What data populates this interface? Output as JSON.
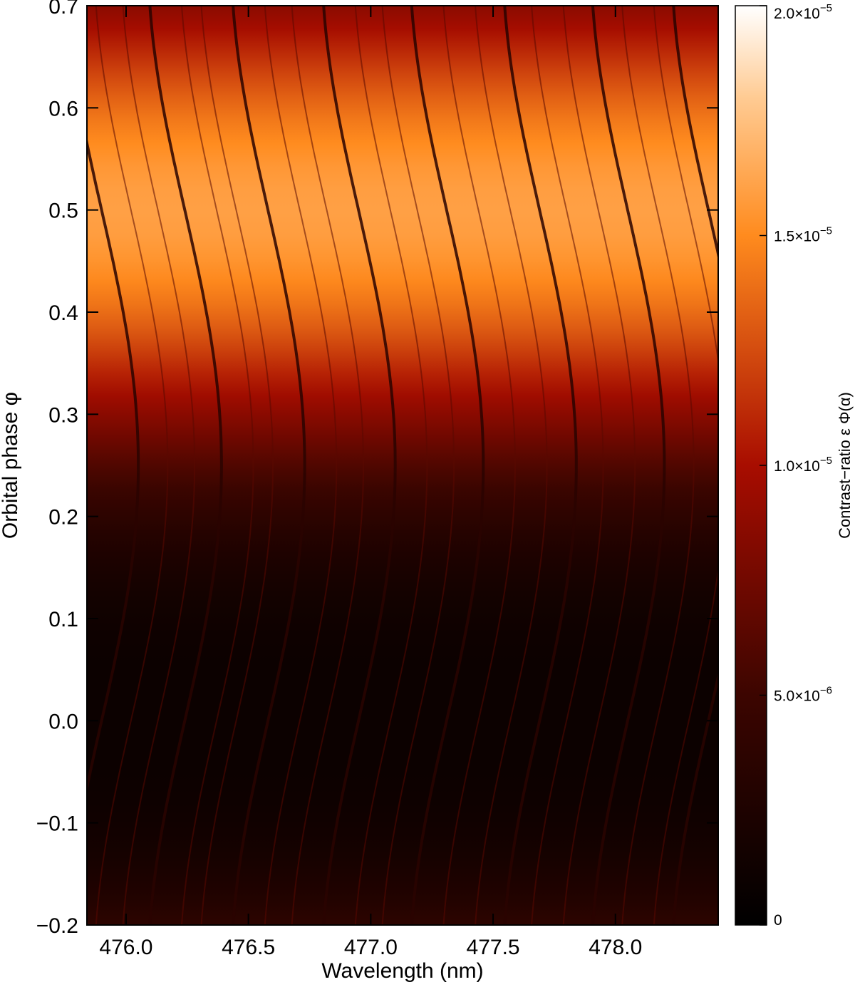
{
  "chart_data": {
    "type": "heatmap",
    "title": "",
    "xlabel": "Wavelength (nm)",
    "ylabel": "Orbital phase φ",
    "xlim": [
      475.84,
      478.42
    ],
    "ylim": [
      -0.2,
      0.7
    ],
    "x_ticks": [
      476.0,
      476.5,
      477.0,
      477.5,
      478.0
    ],
    "x_tick_labels": [
      "476.0",
      "476.5",
      "477.0",
      "477.5",
      "478.0"
    ],
    "y_ticks": [
      -0.2,
      -0.1,
      0.0,
      0.1,
      0.2,
      0.3,
      0.4,
      0.5,
      0.6,
      0.7
    ],
    "y_tick_labels": [
      "−0.2",
      "−0.1",
      "0.0",
      "0.1",
      "0.2",
      "0.3",
      "0.4",
      "0.5",
      "0.6",
      "0.7"
    ],
    "colorbar": {
      "label": "Contrast−ratio ε Φ(α)",
      "range": [
        0,
        2e-05
      ],
      "ticks": [
        0,
        5e-06,
        1e-05,
        1.5e-05,
        2e-05
      ],
      "tick_labels": [
        {
          "mantissa": "0",
          "exponent": ""
        },
        {
          "mantissa": "5.0×10",
          "exponent": "−6"
        },
        {
          "mantissa": "1.0×10",
          "exponent": "−5"
        },
        {
          "mantissa": "1.5×10",
          "exponent": "−5"
        },
        {
          "mantissa": "2.0×10",
          "exponent": "−5"
        }
      ],
      "colormap": "black-red-orange-white",
      "stops": [
        {
          "v": 0.0,
          "color": "#000000"
        },
        {
          "v": 0.25,
          "color": "#3c0500"
        },
        {
          "v": 0.5,
          "color": "#a80d00"
        },
        {
          "v": 0.75,
          "color": "#ff8b1e"
        },
        {
          "v": 0.9,
          "color": "#ffcb93"
        },
        {
          "v": 1.0,
          "color": "#ffffff"
        }
      ]
    },
    "max_contrast_phase": 0.5,
    "peak_contrast": 1.6e-05,
    "min_contrast": 1e-06,
    "doppler_amplitude_nm": 0.15,
    "absorption_line_centers_nm": [
      475.9,
      476.02,
      476.13,
      476.24,
      476.37,
      476.45,
      476.58,
      476.71,
      476.82,
      476.95,
      477.08,
      477.19,
      477.31,
      477.44,
      477.57,
      477.69,
      477.8,
      477.93,
      478.05,
      478.17,
      478.3,
      478.38
    ]
  }
}
